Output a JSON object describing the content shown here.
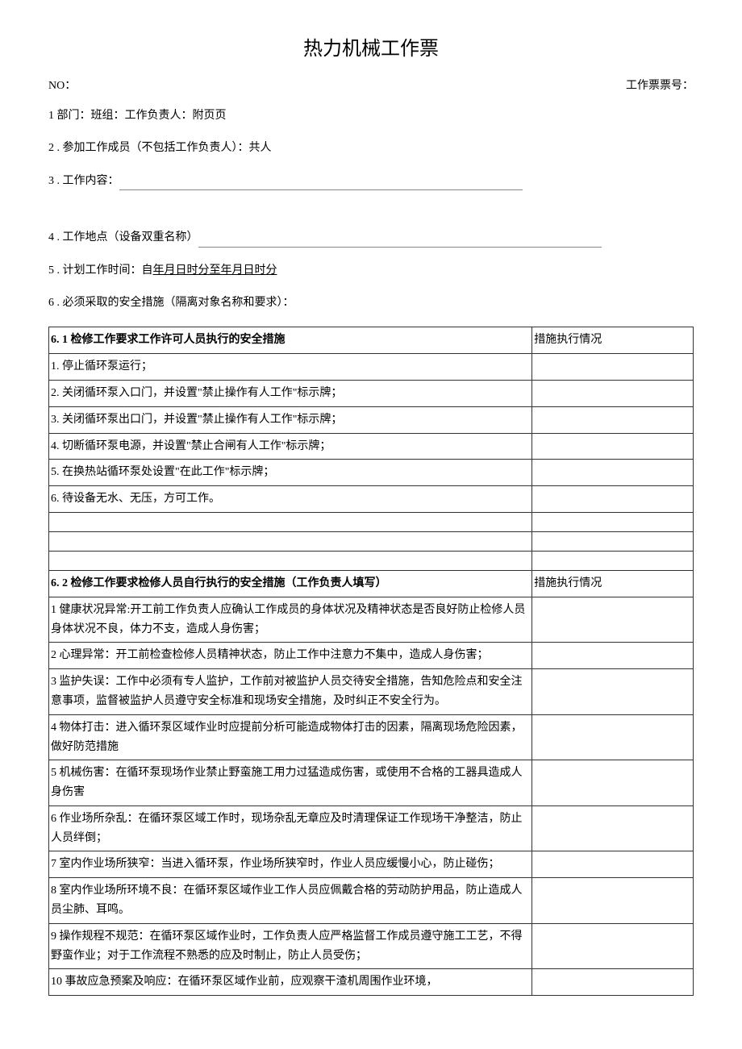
{
  "doc": {
    "title": "热力机械工作票",
    "no_label": "NO：",
    "ticket_no_label": "工作票票号：",
    "line1": "1 部门：班组：工作负责人：附页页",
    "line2": "2  . 参加工作成员（不包括工作负责人）：共人",
    "line3": "3  . 工作内容：",
    "line4": "4  . 工作地点（设备双重名称）",
    "line5_prefix": "5  . 计划工作时间：自",
    "line5_underline": "年月日时分至年月日时分",
    "line6": "6  . 必须采取的安全措施（隔离对象名称和要求）：",
    "section61_title": "6. 1 检修工作要求工作许可人员执行的安全措施",
    "col_status": "措施执行情况",
    "s61_items": [
      "1. 停止循环泵运行；",
      "2. 关闭循环泵入口门，并设置\"禁止操作有人工作\"标示牌；",
      "3. 关闭循环泵出口门，并设置\"禁止操作有人工作\"标示牌；",
      "4. 切断循环泵电源，并设置\"禁止合闸有人工作\"标示牌；",
      "5. 在换热站循环泵处设置\"在此工作\"标示牌；",
      "6. 待设备无水、无压，方可工作。"
    ],
    "section62_title": "6. 2 检修工作要求检修人员自行执行的安全措施（工作负责人填写）",
    "s62_items": [
      "1 健康状况异常:开工前工作负责人应确认工作成员的身体状况及精神状态是否良好防止检修人员身体状况不良，体力不支，造成人身伤害；",
      "2 心理异常：开工前检查检修人员精神状态，防止工作中注意力不集中，造成人身伤害；",
      "3 监护失误：工作中必须有专人监护，工作前对被监护人员交待安全措施，告知危险点和安全注意事项，监督被监护人员遵守安全标准和现场安全措施，及时纠正不安全行为。",
      "4 物体打击：进入循环泵区域作业时应提前分析可能造成物体打击的因素，隔离现场危险因素，做好防范措施",
      "5 机械伤害：在循环泵现场作业禁止野蛮施工用力过猛造成伤害，或使用不合格的工器具造成人身伤害",
      "6 作业场所杂乱：在循环泵区域工作时，现场杂乱无章应及时清理保证工作现场干净整洁，防止人员绊倒；",
      "7 室内作业场所狭窄：当进入循环泵，作业场所狭窄时，作业人员应缓慢小心，防止碰伤；",
      "8 室内作业场所环境不良：在循环泵区域作业工作人员应佩戴合格的劳动防护用品，防止造成人员尘肺、耳鸣。",
      "9 操作规程不规范：在循环泵区域作业时，工作负责人应严格监督工作成员遵守施工工艺，不得野蛮作业；对于工作流程不熟悉的应及时制止，防止人员受伤；",
      "10 事故应急预案及响应：在循环泵区域作业前，应观察干渣机周围作业环境，"
    ]
  },
  "style": {
    "title_fontsize": 24,
    "body_fontsize": 14,
    "text_color": "#000000",
    "bg_color": "#ffffff",
    "border_color": "#333333",
    "underline_color": "#888888",
    "table_col_left_pct": 75,
    "table_col_right_pct": 25
  }
}
